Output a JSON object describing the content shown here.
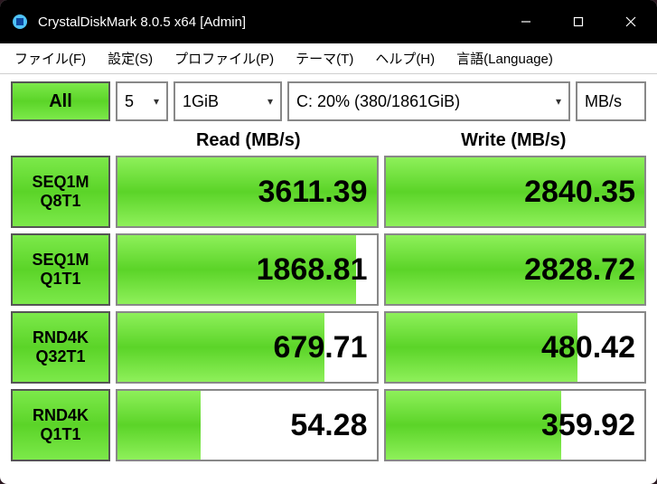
{
  "window": {
    "title": "CrystalDiskMark 8.0.5 x64 [Admin]"
  },
  "menu": {
    "file": "ファイル(F)",
    "settings": "設定(S)",
    "profile": "プロファイル(P)",
    "theme": "テーマ(T)",
    "help": "ヘルプ(H)",
    "language": "言語(Language)"
  },
  "toolbar": {
    "all_label": "All",
    "count": "5",
    "size": "1GiB",
    "drive": "C: 20% (380/1861GiB)",
    "unit": "MB/s"
  },
  "headers": {
    "read": "Read (MB/s)",
    "write": "Write (MB/s)"
  },
  "rows": [
    {
      "label1": "SEQ1M",
      "label2": "Q8T1",
      "read": "3611.39",
      "read_pct": 100,
      "write": "2840.35",
      "write_pct": 100
    },
    {
      "label1": "SEQ1M",
      "label2": "Q1T1",
      "read": "1868.81",
      "read_pct": 92,
      "write": "2828.72",
      "write_pct": 100
    },
    {
      "label1": "RND4K",
      "label2": "Q32T1",
      "read": "679.71",
      "read_pct": 80,
      "write": "480.42",
      "write_pct": 74
    },
    {
      "label1": "RND4K",
      "label2": "Q1T1",
      "read": "54.28",
      "read_pct": 32,
      "write": "359.92",
      "write_pct": 68
    }
  ],
  "colors": {
    "bar_gradient_top": "#8ef05a",
    "bar_gradient_mid": "#5bd428",
    "titlebar_bg": "#000000",
    "window_bg": "#ffffff",
    "border": "#888888"
  }
}
